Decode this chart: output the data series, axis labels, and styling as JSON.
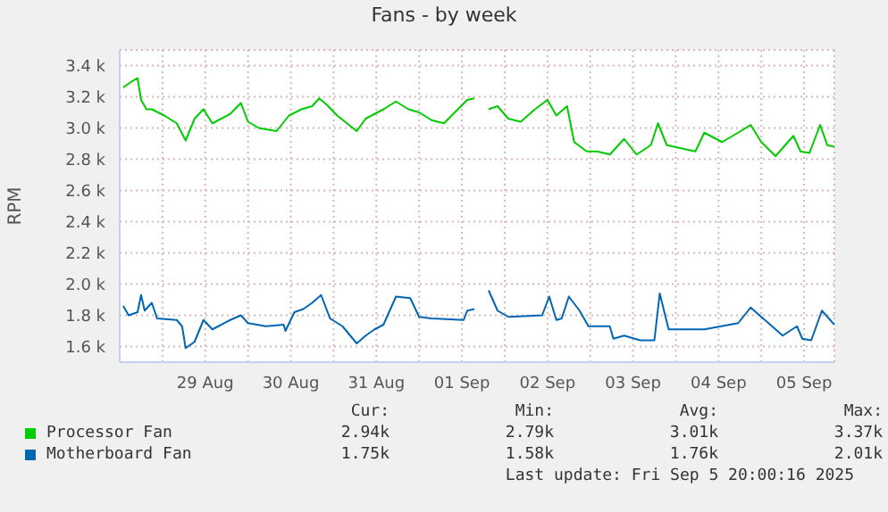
{
  "chart_data": {
    "type": "line",
    "title": "Fans - by week",
    "ylabel": "RPM",
    "xlim": [
      "2025-08-28T12:00",
      "2025-09-05T20:30"
    ],
    "xticks": [
      {
        "value": "2025-08-29T00:00",
        "label": null
      },
      {
        "value": "2025-08-29T12:00",
        "label": "29 Aug"
      },
      {
        "value": "2025-08-30T00:00",
        "label": null
      },
      {
        "value": "2025-08-30T12:00",
        "label": "30 Aug"
      },
      {
        "value": "2025-08-31T00:00",
        "label": null
      },
      {
        "value": "2025-08-31T12:00",
        "label": "31 Aug"
      },
      {
        "value": "2025-09-01T00:00",
        "label": null
      },
      {
        "value": "2025-09-01T12:00",
        "label": "01 Sep"
      },
      {
        "value": "2025-09-02T00:00",
        "label": null
      },
      {
        "value": "2025-09-02T12:00",
        "label": "02 Sep"
      },
      {
        "value": "2025-09-03T00:00",
        "label": null
      },
      {
        "value": "2025-09-03T12:00",
        "label": "03 Sep"
      },
      {
        "value": "2025-09-04T00:00",
        "label": null
      },
      {
        "value": "2025-09-04T12:00",
        "label": "04 Sep"
      },
      {
        "value": "2025-09-05T00:00",
        "label": null
      },
      {
        "value": "2025-09-05T12:00",
        "label": "05 Sep"
      }
    ],
    "ylim": [
      1500,
      3500
    ],
    "yticks": [
      {
        "value": 1600,
        "label": "1.6 k"
      },
      {
        "value": 1800,
        "label": "1.8 k"
      },
      {
        "value": 2000,
        "label": "2.0 k"
      },
      {
        "value": 2200,
        "label": "2.2 k"
      },
      {
        "value": 2400,
        "label": "2.4 k"
      },
      {
        "value": 2600,
        "label": "2.6 k"
      },
      {
        "value": 2800,
        "label": "2.8 k"
      },
      {
        "value": 3000,
        "label": "3.0 k"
      },
      {
        "value": 3200,
        "label": "3.2 k"
      },
      {
        "value": 3400,
        "label": "3.4 k"
      }
    ],
    "grid": true,
    "legend": "bottom",
    "marker": "none",
    "line_style": "solid",
    "series": [
      {
        "name": "Processor Fan",
        "color": "#00cc00",
        "x": [
          "2025-08-28T13:00",
          "2025-08-28T15:30",
          "2025-08-28T17:00",
          "2025-08-28T18:00",
          "2025-08-28T19:30",
          "2025-08-28T21:00",
          "2025-08-29T00:30",
          "2025-08-29T04:00",
          "2025-08-29T06:30",
          "2025-08-29T09:00",
          "2025-08-29T11:30",
          "2025-08-29T14:00",
          "2025-08-29T19:00",
          "2025-08-29T22:00",
          "2025-08-30T00:00",
          "2025-08-30T03:00",
          "2025-08-30T08:00",
          "2025-08-30T11:30",
          "2025-08-30T15:00",
          "2025-08-30T18:00",
          "2025-08-30T20:00",
          "2025-08-30T22:30",
          "2025-08-31T01:00",
          "2025-08-31T06:30",
          "2025-08-31T09:00",
          "2025-08-31T14:00",
          "2025-08-31T17:30",
          "2025-08-31T21:00",
          "2025-09-01T00:00",
          "2025-09-01T03:30",
          "2025-09-01T07:00",
          "2025-09-01T10:00",
          "2025-09-01T13:30",
          "2025-09-01T15:30",
          "2025-09-01T18:00",
          "2025-09-01T19:30",
          "2025-09-01T22:00",
          "2025-09-02T01:00",
          "2025-09-02T04:30",
          "2025-09-02T08:30",
          "2025-09-02T12:00",
          "2025-09-02T14:30",
          "2025-09-02T17:30",
          "2025-09-02T19:30",
          "2025-09-02T23:00",
          "2025-09-03T02:00",
          "2025-09-03T05:30",
          "2025-09-03T09:30",
          "2025-09-03T13:00",
          "2025-09-03T17:00",
          "2025-09-03T19:00",
          "2025-09-03T21:30",
          "2025-09-04T01:30",
          "2025-09-04T05:30",
          "2025-09-04T08:00",
          "2025-09-04T13:00",
          "2025-09-04T17:30",
          "2025-09-04T21:00",
          "2025-09-05T00:00",
          "2025-09-05T04:00",
          "2025-09-05T09:00",
          "2025-09-05T11:00",
          "2025-09-05T13:30",
          "2025-09-05T16:30",
          "2025-09-05T18:30",
          "2025-09-05T20:30"
        ],
        "values": [
          3260,
          3300,
          3320,
          3180,
          3120,
          3120,
          3080,
          3030,
          2920,
          3060,
          3120,
          3030,
          3090,
          3160,
          3040,
          3000,
          2980,
          3080,
          3120,
          3140,
          3190,
          3140,
          3080,
          2980,
          3060,
          3120,
          3170,
          3120,
          3100,
          3050,
          3030,
          3100,
          3180,
          3190,
          null,
          3120,
          3140,
          3060,
          3040,
          3120,
          3180,
          3080,
          3140,
          2910,
          2850,
          2850,
          2830,
          2930,
          2830,
          2890,
          3030,
          2890,
          2870,
          2850,
          2970,
          2910,
          2970,
          3020,
          2910,
          2820,
          2950,
          2850,
          2840,
          3020,
          2890,
          2880
        ]
      },
      {
        "name": "Motherboard Fan",
        "color": "#0066b3",
        "x": [
          "2025-08-28T13:00",
          "2025-08-28T14:30",
          "2025-08-28T17:00",
          "2025-08-28T18:00",
          "2025-08-28T19:00",
          "2025-08-28T21:00",
          "2025-08-28T22:30",
          "2025-08-29T04:00",
          "2025-08-29T05:30",
          "2025-08-29T06:30",
          "2025-08-29T09:00",
          "2025-08-29T11:30",
          "2025-08-29T14:00",
          "2025-08-29T19:00",
          "2025-08-29T22:00",
          "2025-08-30T00:00",
          "2025-08-30T05:00",
          "2025-08-30T10:00",
          "2025-08-30T10:30",
          "2025-08-30T13:00",
          "2025-08-30T15:30",
          "2025-08-30T18:00",
          "2025-08-30T20:30",
          "2025-08-30T23:00",
          "2025-08-31T02:30",
          "2025-08-31T06:30",
          "2025-08-31T09:00",
          "2025-08-31T11:30",
          "2025-08-31T14:00",
          "2025-08-31T17:30",
          "2025-08-31T21:30",
          "2025-09-01T00:00",
          "2025-09-01T03:30",
          "2025-09-01T12:30",
          "2025-09-01T13:30",
          "2025-09-01T15:30",
          "2025-09-01T18:00",
          "2025-09-01T19:30",
          "2025-09-01T22:00",
          "2025-09-02T01:00",
          "2025-09-02T10:30",
          "2025-09-02T12:30",
          "2025-09-02T14:30",
          "2025-09-02T16:00",
          "2025-09-02T18:00",
          "2025-09-02T21:00",
          "2025-09-02T23:30",
          "2025-09-03T05:30",
          "2025-09-03T06:30",
          "2025-09-03T09:30",
          "2025-09-03T14:00",
          "2025-09-03T18:00",
          "2025-09-03T19:30",
          "2025-09-03T22:00",
          "2025-09-04T08:00",
          "2025-09-04T17:30",
          "2025-09-04T21:00",
          "2025-09-05T01:00",
          "2025-09-05T06:00",
          "2025-09-05T10:00",
          "2025-09-05T11:30",
          "2025-09-05T14:00",
          "2025-09-05T17:00",
          "2025-09-05T20:30"
        ],
        "values": [
          1860,
          1800,
          1820,
          1930,
          1830,
          1880,
          1780,
          1770,
          1730,
          1590,
          1630,
          1770,
          1710,
          1770,
          1800,
          1750,
          1730,
          1740,
          1700,
          1820,
          1840,
          1880,
          1930,
          1780,
          1730,
          1620,
          1670,
          1710,
          1740,
          1920,
          1910,
          1790,
          1780,
          1770,
          1830,
          1840,
          null,
          1960,
          1830,
          1790,
          1800,
          1920,
          1770,
          1780,
          1920,
          1830,
          1730,
          1730,
          1650,
          1670,
          1640,
          1640,
          1940,
          1710,
          1710,
          1750,
          1850,
          1770,
          1670,
          1730,
          1650,
          1640,
          1830,
          1740
        ]
      }
    ],
    "annotations": [
      "Cur:",
      "Min:",
      "Avg:",
      "Max:",
      "2.94k",
      "2.79k",
      "3.01k",
      "3.37k",
      "1.75k",
      "1.58k",
      "1.76k",
      "2.01k",
      "Last update: Fri Sep  5 20:00:16 2025"
    ]
  }
}
